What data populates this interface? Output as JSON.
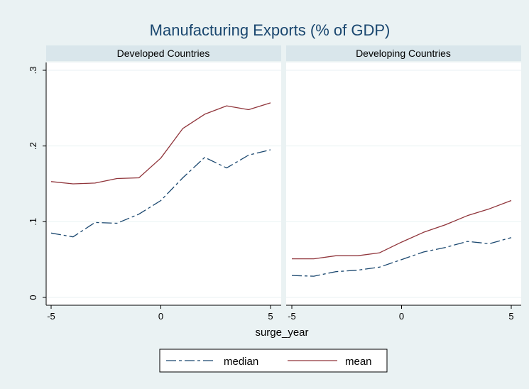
{
  "chart_data": {
    "type": "line",
    "title": "Manufacturing Exports (% of GDP)",
    "xlabel": "surge_year",
    "ylabel": "",
    "x": [
      -5,
      -4,
      -3,
      -2,
      -1,
      0,
      1,
      2,
      3,
      4,
      5
    ],
    "x_ticks": [
      "-5",
      "0",
      "5"
    ],
    "y_ticks": [
      "0",
      ".1",
      ".2",
      ".3"
    ],
    "xlim": [
      -5,
      5
    ],
    "ylim": [
      0,
      0.3
    ],
    "grid": true,
    "legend": {
      "position": "bottom"
    },
    "colors": {
      "median": "#1a476f",
      "mean": "#90353b",
      "background": "#eaf2f3",
      "header": "#d9e6eb",
      "title": "#1a476f"
    },
    "panels": [
      {
        "label": "Developed Countries",
        "series": [
          {
            "name": "median",
            "values": [
              0.085,
              0.08,
              0.099,
              0.098,
              0.11,
              0.128,
              0.158,
              0.185,
              0.171,
              0.188,
              0.195
            ]
          },
          {
            "name": "mean",
            "values": [
              0.153,
              0.15,
              0.151,
              0.157,
              0.158,
              0.184,
              0.223,
              0.242,
              0.253,
              0.248,
              0.257
            ]
          }
        ]
      },
      {
        "label": "Developing Countries",
        "series": [
          {
            "name": "median",
            "values": [
              0.029,
              0.028,
              0.034,
              0.036,
              0.04,
              0.05,
              0.06,
              0.066,
              0.074,
              0.071,
              0.079
            ]
          },
          {
            "name": "mean",
            "values": [
              0.051,
              0.051,
              0.055,
              0.055,
              0.059,
              0.073,
              0.086,
              0.096,
              0.108,
              0.117,
              0.128
            ]
          }
        ]
      }
    ]
  }
}
